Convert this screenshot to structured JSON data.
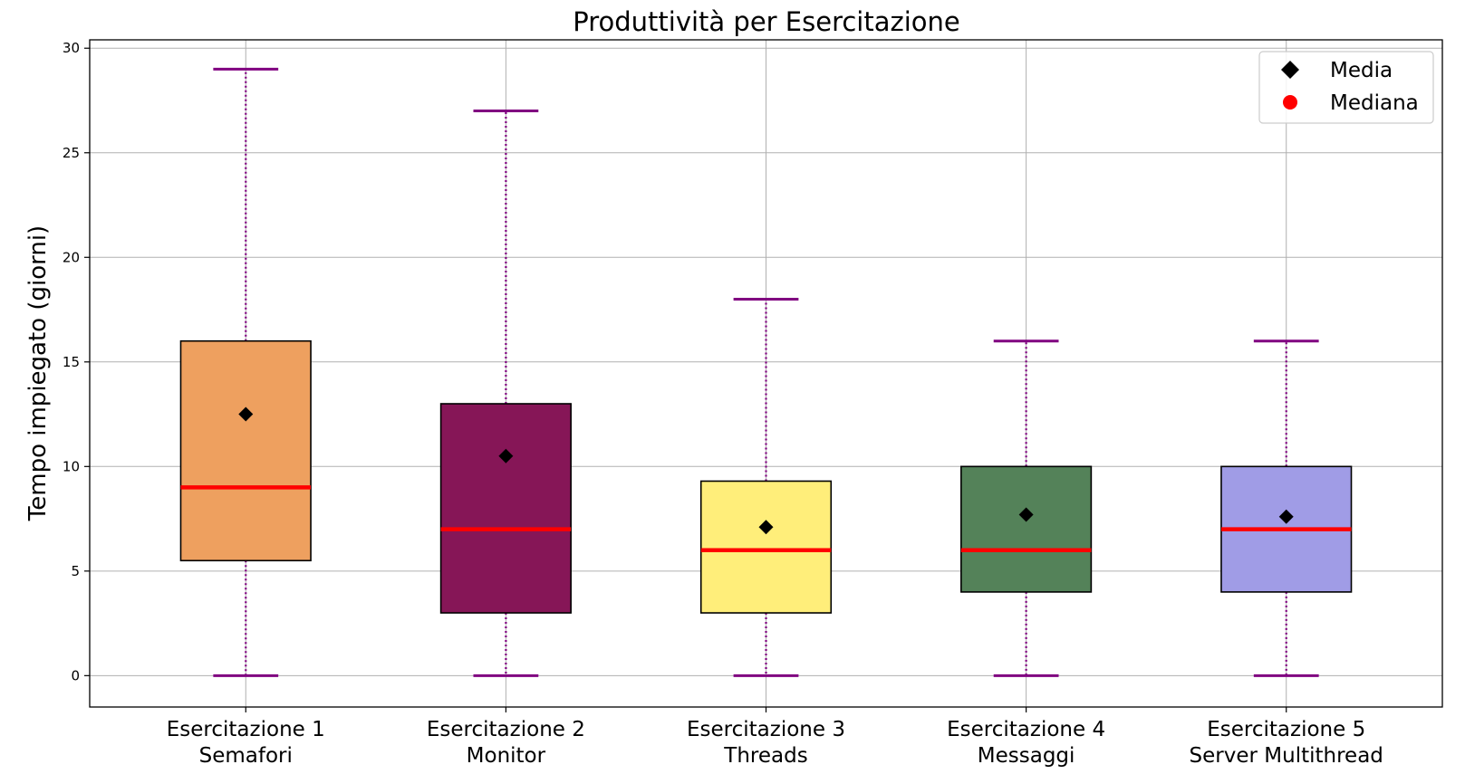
{
  "chart_data": {
    "type": "box",
    "title": "Produttività per Esercitazione",
    "xlabel": "",
    "ylabel": "Tempo impiegato (giorni)",
    "ylim": [
      -1.5,
      30.4
    ],
    "yticks": [
      0,
      5,
      10,
      15,
      20,
      25,
      30
    ],
    "grid": true,
    "legend": {
      "placement": "top-right",
      "entries": [
        {
          "label": "Media",
          "marker": "diamond",
          "color": "#000000"
        },
        {
          "label": "Mediana",
          "marker": "circle",
          "color": "#ff0000"
        }
      ]
    },
    "categories": [
      [
        "Esercitazione 1",
        "Semafori"
      ],
      [
        "Esercitazione 2",
        "Monitor"
      ],
      [
        "Esercitazione 3",
        "Threads"
      ],
      [
        "Esercitazione 4",
        "Messaggi"
      ],
      [
        "Esercitazione 5",
        "Server Multithread"
      ]
    ],
    "boxes": [
      {
        "whisker_low": 0,
        "q1": 5.5,
        "median": 9,
        "q3": 16,
        "whisker_high": 29,
        "mean": 12.5,
        "color": "#eea05f"
      },
      {
        "whisker_low": 0,
        "q1": 3,
        "median": 7,
        "q3": 13,
        "whisker_high": 27,
        "mean": 10.5,
        "color": "#861657"
      },
      {
        "whisker_low": 0,
        "q1": 3,
        "median": 6,
        "q3": 9.3,
        "whisker_high": 18,
        "mean": 7.1,
        "color": "#ffee7a"
      },
      {
        "whisker_low": 0,
        "q1": 4,
        "median": 6,
        "q3": 10,
        "whisker_high": 16,
        "mean": 7.7,
        "color": "#548259"
      },
      {
        "whisker_low": 0,
        "q1": 4,
        "median": 7,
        "q3": 10,
        "whisker_high": 16,
        "mean": 7.6,
        "color": "#a09ce6"
      }
    ],
    "colors": {
      "median": "#ff0000",
      "whisker": "#800080",
      "mean": "#000000",
      "grid": "#b0b0b0",
      "box_edge": "#000000"
    }
  }
}
